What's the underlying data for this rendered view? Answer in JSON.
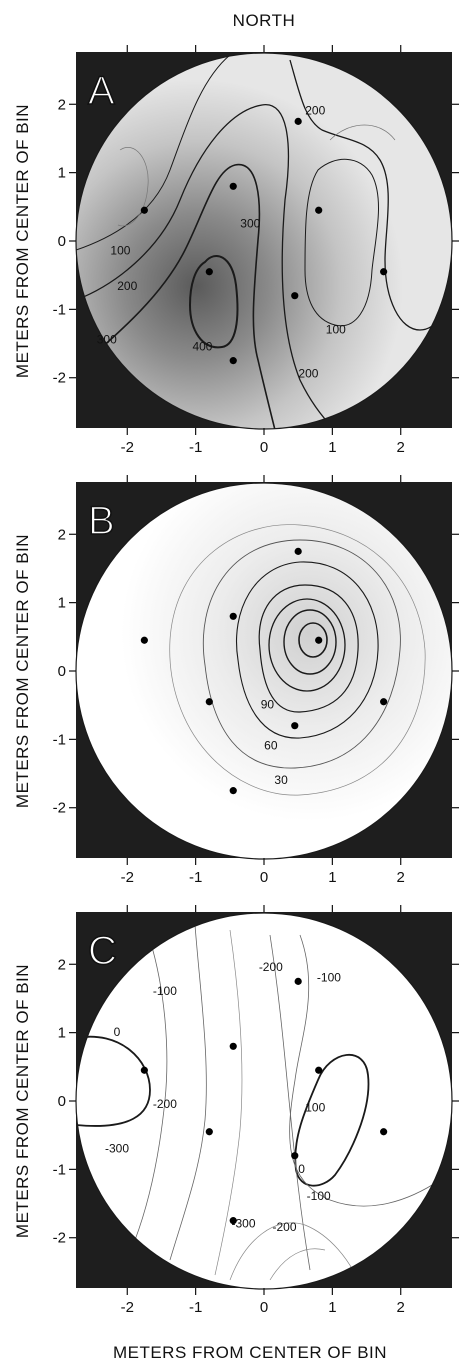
{
  "figure": {
    "top_label": "NORTH",
    "bottom_xlabel": "METERS FROM CENTER OF BIN"
  },
  "chart_data": [
    {
      "panel": "A",
      "type": "contour",
      "ylabel": "METERS FROM CENTER OF BIN",
      "xlim": [
        -2.75,
        2.75
      ],
      "ylim": [
        -2.75,
        2.75
      ],
      "xticks": [
        "-2",
        "-1",
        "0",
        "1",
        "2"
      ],
      "yticks": [
        "2",
        "1",
        "0",
        "-1",
        "-2"
      ],
      "sensors": [
        {
          "x": -1.75,
          "y": 0.45
        },
        {
          "x": -0.45,
          "y": 0.8
        },
        {
          "x": 0.5,
          "y": 1.75
        },
        {
          "x": 0.8,
          "y": 0.45
        },
        {
          "x": 1.75,
          "y": -0.45
        },
        {
          "x": -0.8,
          "y": -0.45
        },
        {
          "x": 0.45,
          "y": -0.8
        },
        {
          "x": -0.45,
          "y": -1.75
        }
      ],
      "contour_labels": [
        {
          "text": "100",
          "x": -2.1,
          "y": -0.2
        },
        {
          "text": "200",
          "x": -2.0,
          "y": -0.72
        },
        {
          "text": "300",
          "x": -2.3,
          "y": -1.5
        },
        {
          "text": "400",
          "x": -0.9,
          "y": -1.6
        },
        {
          "text": "300",
          "x": -0.2,
          "y": 0.2
        },
        {
          "text": "200",
          "x": 0.75,
          "y": 1.85
        },
        {
          "text": "100",
          "x": 1.05,
          "y": -1.35
        },
        {
          "text": "200",
          "x": 0.65,
          "y": -2.0
        }
      ]
    },
    {
      "panel": "B",
      "type": "contour",
      "ylabel": "METERS FROM CENTER OF BIN",
      "xlim": [
        -2.75,
        2.75
      ],
      "ylim": [
        -2.75,
        2.75
      ],
      "xticks": [
        "-2",
        "-1",
        "0",
        "1",
        "2"
      ],
      "yticks": [
        "2",
        "1",
        "0",
        "-1",
        "-2"
      ],
      "sensors": [
        {
          "x": -1.75,
          "y": 0.45
        },
        {
          "x": -0.45,
          "y": 0.8
        },
        {
          "x": 0.5,
          "y": 1.75
        },
        {
          "x": 0.8,
          "y": 0.45
        },
        {
          "x": 1.75,
          "y": -0.45
        },
        {
          "x": -0.8,
          "y": -0.45
        },
        {
          "x": 0.45,
          "y": -0.8
        },
        {
          "x": -0.45,
          "y": -1.75
        }
      ],
      "contour_labels": [
        {
          "text": "90",
          "x": 0.05,
          "y": -0.55
        },
        {
          "text": "60",
          "x": 0.1,
          "y": -1.15
        },
        {
          "text": "30",
          "x": 0.25,
          "y": -1.65
        }
      ]
    },
    {
      "panel": "C",
      "type": "contour",
      "ylabel": "METERS FROM CENTER OF BIN",
      "xlim": [
        -2.75,
        2.75
      ],
      "ylim": [
        -2.75,
        2.75
      ],
      "xticks": [
        "-2",
        "-1",
        "0",
        "1",
        "2"
      ],
      "yticks": [
        "2",
        "1",
        "0",
        "-1",
        "-2"
      ],
      "sensors": [
        {
          "x": -1.75,
          "y": 0.45
        },
        {
          "x": -0.45,
          "y": 0.8
        },
        {
          "x": 0.5,
          "y": 1.75
        },
        {
          "x": 0.8,
          "y": 0.45
        },
        {
          "x": 1.75,
          "y": -0.45
        },
        {
          "x": -0.8,
          "y": -0.45
        },
        {
          "x": 0.45,
          "y": -0.8
        },
        {
          "x": -0.45,
          "y": -1.75
        }
      ],
      "contour_labels": [
        {
          "text": "0",
          "x": -2.15,
          "y": 0.95
        },
        {
          "text": "-100",
          "x": -1.45,
          "y": 1.55
        },
        {
          "text": "-200",
          "x": -1.45,
          "y": -0.1
        },
        {
          "text": "-300",
          "x": -2.15,
          "y": -0.75
        },
        {
          "text": "-200",
          "x": 0.1,
          "y": 1.9
        },
        {
          "text": "-100",
          "x": 0.95,
          "y": 1.75
        },
        {
          "text": "100",
          "x": 0.75,
          "y": -0.15
        },
        {
          "text": "0",
          "x": 0.55,
          "y": -1.05
        },
        {
          "text": "-100",
          "x": 0.8,
          "y": -1.45
        },
        {
          "text": "-200",
          "x": 0.3,
          "y": -1.9
        },
        {
          "text": "-300",
          "x": -0.3,
          "y": -1.85
        }
      ]
    }
  ]
}
